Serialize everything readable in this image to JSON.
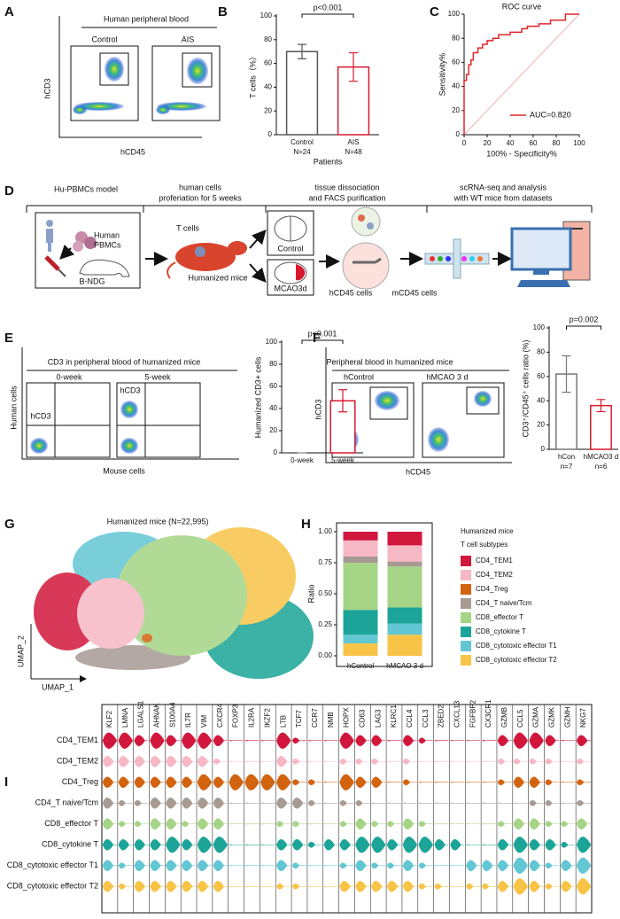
{
  "letters": [
    "A",
    "B",
    "C",
    "D",
    "E",
    "F",
    "G",
    "H",
    "I"
  ],
  "panels": {
    "A": {
      "title": "Human peripheral blood",
      "groups": [
        "Control",
        "AIS"
      ],
      "y_axis": "hCD3",
      "x_axis": "hCD45"
    },
    "D": {
      "steps": [
        [
          "Hu-PBMCs model"
        ],
        [
          "human cells",
          "proferiation for 5 weeks"
        ],
        [
          "tissue dissociation",
          "and FACS purification"
        ],
        [
          "scRNA-seq and analysis",
          "with WT mice from datasets"
        ]
      ],
      "human_pbmcs": [
        "Human",
        "PBMCs"
      ],
      "b_ndg": "B-NDG",
      "t_cells": "T cells",
      "humanized_mice": "Humanized mice",
      "control": "Control",
      "mcao": "MCAO3d",
      "hcd45": "hCD45 cells",
      "mcd45": "mCD45 cells"
    },
    "E": {
      "title": "CD3 in peripheral blood of humanized mice",
      "groups": [
        "0-week",
        "5-week"
      ],
      "gates": [
        "hCD3",
        "hCD3"
      ],
      "y_axis": "Human cells",
      "x_axis": "Mouse cells"
    },
    "F": {
      "title": "Peripheral blood in humanized mice",
      "groups": [
        "hControl",
        "hMCAO 3 d"
      ],
      "y_axis": "hCD3",
      "x_axis": "hCD45"
    },
    "G": {
      "title": "Humanized mice (N=22,995)",
      "x_axis": "UMAP_1",
      "y_axis": "UMAP_2"
    }
  },
  "chart_data": [
    {
      "type": "bar",
      "categories": [
        "Control",
        "AIS"
      ],
      "n_labels": [
        "N=24",
        "N=48"
      ],
      "values": [
        70,
        57
      ],
      "errors": [
        6,
        12
      ],
      "colors": [
        "#555555",
        "#d7192e"
      ],
      "ylim": [
        0,
        100
      ],
      "yticks": [
        0,
        20,
        40,
        60,
        80,
        100
      ],
      "ylabel": "T cells（%）",
      "xlabel": "Patients",
      "annotation": "p<0.001"
    },
    {
      "type": "line",
      "title": "ROC curve",
      "x": [
        0,
        0,
        2,
        2,
        4,
        4,
        6,
        6,
        8,
        8,
        12,
        12,
        16,
        16,
        20,
        20,
        25,
        25,
        30,
        30,
        40,
        40,
        50,
        50,
        55,
        55,
        65,
        65,
        75,
        75,
        88,
        88,
        100
      ],
      "series": [
        {
          "name": "AUC=0.820",
          "color": "#e0262a",
          "values": [
            0,
            45,
            45,
            50,
            50,
            58,
            58,
            62,
            62,
            68,
            68,
            72,
            72,
            75,
            75,
            78,
            78,
            80,
            80,
            83,
            83,
            85,
            85,
            88,
            88,
            90,
            90,
            92,
            92,
            95,
            95,
            100,
            100
          ]
        }
      ],
      "xlim": [
        0,
        100
      ],
      "ylim": [
        0,
        100
      ],
      "xticks": [
        0,
        20,
        40,
        60,
        80,
        100
      ],
      "yticks": [
        0,
        20,
        40,
        60,
        80,
        100
      ],
      "xlabel": "100% - Specificity%",
      "ylabel": "Sensitivity%"
    },
    {
      "type": "bar",
      "categories": [
        "0-week",
        "5-week"
      ],
      "values": [
        0,
        47
      ],
      "errors": [
        0,
        10
      ],
      "colors": [
        "#888888",
        "#d7192e"
      ],
      "ylim": [
        0,
        100
      ],
      "yticks": [
        0,
        20,
        40,
        60,
        80,
        100
      ],
      "ylabel": "Humanized CD3+ cells",
      "annotation": "p<0.001"
    },
    {
      "type": "bar",
      "categories": [
        "hCon",
        "hMCAO3 d"
      ],
      "n_labels": [
        "n=7",
        "n=6"
      ],
      "values": [
        62,
        36
      ],
      "errors": [
        15,
        5
      ],
      "colors": [
        "#777777",
        "#d7192e"
      ],
      "ylim": [
        0,
        100
      ],
      "yticks": [
        0,
        20,
        40,
        60,
        80,
        100
      ],
      "ylabel": "CD3⁺/CD45⁺ cells ratio (%)",
      "annotation": "p=0.002"
    },
    {
      "type": "stacked_bar",
      "categories": [
        "hControl",
        "hMCAO 3 d"
      ],
      "ylabel": "Ratio",
      "legend_title": "Humanized mice",
      "legend_subtitle": "T cell subtypes",
      "ylim": [
        0,
        1
      ],
      "yticks": [
        {
          "value": 0,
          "label": "0.00"
        },
        {
          "value": 0.25,
          "label": "0.25"
        },
        {
          "value": 0.5,
          "label": "0.50"
        },
        {
          "value": 0.75,
          "label": "0.75"
        },
        {
          "value": 1,
          "label": "1.00"
        }
      ],
      "series": [
        {
          "name": "CD4_TEM1",
          "color": "#d2173c",
          "values": [
            0.07,
            0.11
          ]
        },
        {
          "name": "CD4_TEM2",
          "color": "#f6b8c4",
          "values": [
            0.13,
            0.13
          ]
        },
        {
          "name": "CD4_Treg",
          "color": "#d2630f",
          "values": [
            0,
            0
          ]
        },
        {
          "name": "CD4_T naive/Tcm",
          "color": "#a69a93",
          "values": [
            0.05,
            0.04
          ]
        },
        {
          "name": "CD8_effector T",
          "color": "#a5d486",
          "values": [
            0.38,
            0.33
          ]
        },
        {
          "name": "CD8_cytokine T",
          "color": "#1ba497",
          "values": [
            0.2,
            0.13
          ]
        },
        {
          "name": "CD8_cytotoxic effector T1",
          "color": "#62c6d3",
          "values": [
            0.07,
            0.09
          ]
        },
        {
          "name": "CD8_cytotoxic effector T2",
          "color": "#f7c447",
          "values": [
            0.1,
            0.17
          ]
        }
      ]
    },
    {
      "type": "violin",
      "categories": [
        "KLF2",
        "LMNA",
        "LGALS1",
        "AHNAK",
        "S100A4",
        "IL7R",
        "VIM",
        "CXCR4",
        "FOXP3",
        "IL2RA",
        "IKZF2",
        "LTB",
        "TCF7",
        "CCR7",
        "NMB",
        "HOPX",
        "CD63",
        "LAG3",
        "KLRC1",
        "CCL4",
        "CCL3",
        "ZBED2",
        "CXCL13",
        "FGFBP2",
        "CX3CR1",
        "GZMB",
        "CCL5",
        "GZMA",
        "GZMK",
        "GZMH",
        "NKG7"
      ],
      "series": [
        {
          "name": "CD4_TEM1",
          "color": "#d2173c",
          "values": [
            3,
            3,
            2,
            3,
            2,
            3,
            3,
            2,
            0,
            0,
            0,
            3,
            1,
            0,
            0,
            3,
            2,
            2,
            0,
            2,
            1,
            0,
            0,
            0,
            0,
            2,
            3,
            3,
            2,
            0,
            2
          ]
        },
        {
          "name": "CD4_TEM2",
          "color": "#f6b8c4",
          "values": [
            2,
            2,
            2,
            2,
            2,
            2,
            2,
            1,
            0,
            0,
            0,
            2,
            1,
            0,
            0,
            1,
            1,
            1,
            0,
            1,
            0,
            0,
            0,
            0,
            0,
            1,
            1,
            1,
            1,
            0,
            1
          ]
        },
        {
          "name": "CD4_Treg",
          "color": "#d2630f",
          "values": [
            2,
            2,
            2,
            2,
            2,
            2,
            3,
            2,
            3,
            3,
            3,
            3,
            1,
            1,
            0,
            3,
            2,
            2,
            0,
            1,
            0,
            0,
            0,
            0,
            0,
            1,
            2,
            2,
            1,
            0,
            1
          ]
        },
        {
          "name": "CD4_T naive/Tcm",
          "color": "#a69a93",
          "values": [
            2,
            1,
            1,
            2,
            2,
            2,
            2,
            2,
            0,
            0,
            0,
            2,
            2,
            1,
            0,
            1,
            1,
            0,
            0,
            0,
            0,
            0,
            0,
            0,
            0,
            0,
            0,
            1,
            1,
            0,
            1
          ]
        },
        {
          "name": "CD8_effector T",
          "color": "#a5d486",
          "values": [
            2,
            1,
            1,
            2,
            2,
            1,
            2,
            2,
            0,
            0,
            0,
            1,
            1,
            0,
            0,
            1,
            2,
            1,
            1,
            2,
            1,
            0,
            0,
            0,
            0,
            1,
            2,
            2,
            1,
            1,
            2
          ]
        },
        {
          "name": "CD8_cytokine T",
          "color": "#1ba497",
          "values": [
            2,
            2,
            2,
            2,
            3,
            2,
            3,
            3,
            0,
            0,
            0,
            2,
            2,
            1,
            2,
            2,
            3,
            3,
            2,
            3,
            3,
            2,
            2,
            0,
            0,
            2,
            3,
            2,
            2,
            1,
            3
          ]
        },
        {
          "name": "CD8_cytotoxic effector T1",
          "color": "#62c6d3",
          "values": [
            2,
            1,
            2,
            2,
            2,
            2,
            2,
            2,
            0,
            0,
            0,
            2,
            1,
            0,
            0,
            1,
            2,
            1,
            1,
            2,
            1,
            0,
            0,
            2,
            2,
            2,
            3,
            2,
            1,
            2,
            3
          ]
        },
        {
          "name": "CD8_cytotoxic effector T2",
          "color": "#f7c447",
          "values": [
            2,
            1,
            2,
            2,
            2,
            2,
            2,
            2,
            0,
            0,
            0,
            1,
            1,
            0,
            0,
            2,
            2,
            2,
            2,
            2,
            1,
            1,
            0,
            1,
            1,
            2,
            3,
            2,
            1,
            2,
            3
          ]
        }
      ]
    }
  ]
}
